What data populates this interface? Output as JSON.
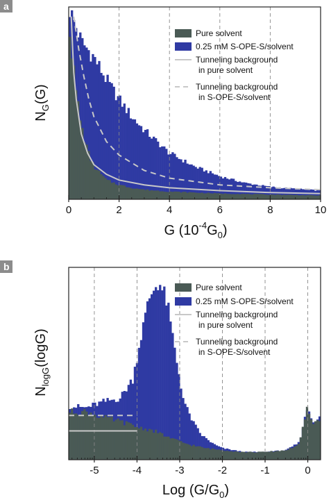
{
  "chart_data": [
    {
      "type": "histogram",
      "panel_label": "a",
      "ylabel": "N",
      "ylabel_sub": "G",
      "ylabel_tail": "(G)",
      "xlabel_parts": [
        "G (10",
        "-4",
        "G",
        "0",
        ")"
      ],
      "xlim": [
        0,
        10
      ],
      "ylim": [
        0,
        1
      ],
      "x_ticks": [
        0,
        2,
        4,
        6,
        8,
        10
      ],
      "x_tick_labels": [
        "0",
        "2",
        "4",
        "6",
        "8",
        "10"
      ],
      "grid_x": [
        2,
        4,
        6,
        8
      ],
      "legend_position": "top-right",
      "legend": {
        "pure": "Pure solvent",
        "mol": "0.25 mM S-OPE-S/solvent",
        "tb_pure_1": "Tunneling background",
        "tb_pure_2": "in pure solvent",
        "tb_mol_1": "Tunneling background",
        "tb_mol_2": "in S-OPE-S/solvent"
      },
      "colors": {
        "pure": "#4a5a55",
        "mol": "#2f3aa3",
        "tb_pure": "#c8c8c8",
        "tb_mol": "#c8c8c8"
      },
      "series": [
        {
          "name": "0.25 mM S-OPE-S/solvent",
          "x": [
            0,
            0.5,
            1,
            1.5,
            2,
            2.5,
            3,
            3.5,
            4,
            5,
            6,
            7,
            8,
            9,
            10
          ],
          "y": [
            1.0,
            0.82,
            0.74,
            0.62,
            0.52,
            0.43,
            0.36,
            0.3,
            0.24,
            0.17,
            0.12,
            0.085,
            0.065,
            0.055,
            0.045
          ]
        },
        {
          "name": "Pure solvent",
          "x": [
            0,
            0.25,
            0.5,
            0.75,
            1,
            1.5,
            2,
            2.5,
            3,
            4,
            6,
            8,
            10
          ],
          "y": [
            0.95,
            0.6,
            0.38,
            0.25,
            0.17,
            0.1,
            0.075,
            0.06,
            0.05,
            0.04,
            0.03,
            0.025,
            0.02
          ]
        },
        {
          "name": "Tunneling background in pure solvent",
          "x": [
            0.1,
            0.2,
            0.3,
            0.5,
            0.75,
            1,
            1.5,
            2,
            3,
            4,
            6,
            8,
            10
          ],
          "y": [
            0.95,
            0.66,
            0.52,
            0.34,
            0.24,
            0.18,
            0.13,
            0.1,
            0.075,
            0.06,
            0.045,
            0.035,
            0.03
          ]
        },
        {
          "name": "Tunneling background in S-OPE-S/solvent",
          "x": [
            0.2,
            0.4,
            0.6,
            0.8,
            1,
            1.5,
            2,
            3,
            4,
            6,
            8,
            10
          ],
          "y": [
            0.95,
            0.78,
            0.64,
            0.52,
            0.43,
            0.3,
            0.23,
            0.15,
            0.11,
            0.075,
            0.06,
            0.05
          ]
        }
      ]
    },
    {
      "type": "histogram",
      "panel_label": "b",
      "ylabel": "N",
      "ylabel_sub": "logG",
      "ylabel_tail": "(logG)",
      "xlabel_parts": [
        "Log (G/G",
        "0",
        ")"
      ],
      "xlim": [
        -5.6,
        0.3
      ],
      "ylim": [
        0,
        1
      ],
      "x_ticks": [
        -5,
        -4,
        -3,
        -2,
        -1,
        0
      ],
      "x_tick_labels": [
        "-5",
        "-4",
        "-3",
        "-2",
        "-1",
        "0"
      ],
      "grid_x": [
        -5,
        -4,
        -3,
        -2,
        -1,
        0
      ],
      "legend_position": "top-right",
      "legend": {
        "pure": "Pure solvent",
        "mol": "0.25 mM S-OPE-S/solvent",
        "tb_pure_1": "Tunneling background",
        "tb_pure_2": "in pure solvent",
        "tb_mol_1": "Tunneling background",
        "tb_mol_2": "in S-OPE-S/solvent"
      },
      "colors": {
        "pure": "#4a5a55",
        "mol": "#2f3aa3",
        "tb_pure": "#c8c8c8",
        "tb_mol": "#c8c8c8"
      },
      "series": [
        {
          "name": "0.25 mM S-OPE-S/solvent",
          "x": [
            -5.6,
            -5.2,
            -4.8,
            -4.4,
            -4.1,
            -3.9,
            -3.7,
            -3.5,
            -3.3,
            -3.1,
            -2.9,
            -2.7,
            -2.5,
            -2.2,
            -2.0,
            -1.5,
            -1.0,
            -0.5,
            -0.2,
            0.0,
            0.1,
            0.3
          ],
          "y": [
            0.28,
            0.27,
            0.3,
            0.32,
            0.42,
            0.65,
            0.85,
            0.93,
            0.82,
            0.55,
            0.3,
            0.2,
            0.13,
            0.08,
            0.06,
            0.04,
            0.04,
            0.05,
            0.09,
            0.28,
            0.2,
            0.22
          ]
        },
        {
          "name": "Pure solvent",
          "x": [
            -5.6,
            -5.2,
            -4.8,
            -4.4,
            -4.0,
            -3.6,
            -3.2,
            -2.8,
            -2.4,
            -2.0,
            -1.5,
            -1.0,
            -0.5,
            -0.2,
            0.0,
            0.1,
            0.3
          ],
          "y": [
            0.25,
            0.25,
            0.22,
            0.2,
            0.17,
            0.15,
            0.11,
            0.08,
            0.06,
            0.05,
            0.04,
            0.04,
            0.05,
            0.08,
            0.28,
            0.18,
            0.22
          ]
        },
        {
          "name": "Tunneling background in pure solvent",
          "x": [
            -5.6,
            -4.0
          ],
          "y": [
            0.15,
            0.15
          ]
        },
        {
          "name": "Tunneling background in S-OPE-S/solvent",
          "x": [
            -5.6,
            -4.0
          ],
          "y": [
            0.23,
            0.23
          ]
        }
      ]
    }
  ]
}
